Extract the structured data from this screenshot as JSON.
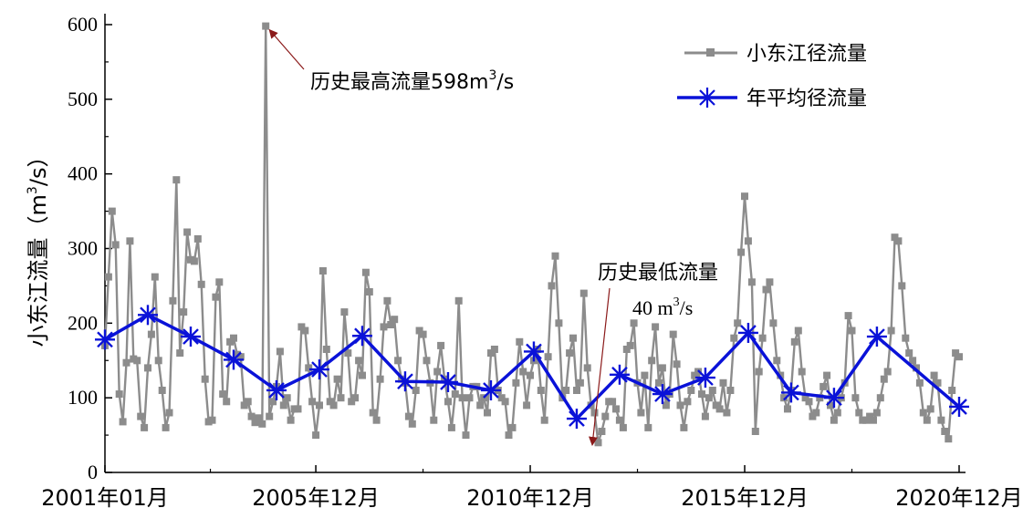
{
  "chart_data": {
    "type": "line",
    "ylabel": "小东江流量（m³/s）",
    "ylabel_text": "小东江流量（m",
    "ylabel_sup": "3",
    "ylabel_tail": "/s）",
    "ylim": [
      0,
      600
    ],
    "yticks": [
      "0",
      "100",
      "200",
      "300",
      "400",
      "500",
      "600"
    ],
    "xlim": [
      "2001-01",
      "2021-01"
    ],
    "xticks": [
      {
        "date": "2001-01",
        "label": "2001年01月"
      },
      {
        "date": "2005-12",
        "label": "2005年12月"
      },
      {
        "date": "2010-12",
        "label": "2010年12月"
      },
      {
        "date": "2015-12",
        "label": "2015年12月"
      },
      {
        "date": "2020-12",
        "label": "2020年12月"
      }
    ],
    "grid": false,
    "legend_position": "top-right",
    "series": [
      {
        "name": "小东江径流量",
        "color": "#8c8c8c",
        "marker": "square",
        "start": "2001-01",
        "frequency": "monthly",
        "values": [
          170,
          262,
          350,
          305,
          105,
          68,
          147,
          310,
          152,
          150,
          75,
          60,
          140,
          185,
          262,
          150,
          110,
          60,
          80,
          230,
          392,
          160,
          215,
          322,
          285,
          283,
          313,
          252,
          125,
          68,
          70,
          235,
          255,
          105,
          95,
          175,
          180,
          158,
          155,
          90,
          95,
          75,
          67,
          73,
          65,
          598,
          75,
          95,
          115,
          162,
          90,
          100,
          70,
          85,
          85,
          195,
          190,
          140,
          95,
          50,
          90,
          270,
          165,
          95,
          90,
          125,
          100,
          215,
          160,
          95,
          100,
          150,
          130,
          268,
          242,
          80,
          70,
          125,
          195,
          230,
          198,
          205,
          150,
          125,
          120,
          75,
          65,
          110,
          190,
          185,
          150,
          120,
          70,
          135,
          170,
          125,
          95,
          60,
          105,
          230,
          100,
          50,
          100,
          115,
          115,
          90,
          100,
          80,
          160,
          165,
          110,
          100,
          95,
          50,
          60,
          120,
          175,
          135,
          90,
          130,
          150,
          165,
          110,
          70,
          155,
          250,
          290,
          200,
          100,
          110,
          160,
          180,
          110,
          120,
          240,
          140,
          90,
          80,
          40,
          55,
          75,
          95,
          95,
          85,
          70,
          60,
          165,
          170,
          200,
          120,
          80,
          130,
          60,
          150,
          195,
          120,
          140,
          90,
          105,
          185,
          145,
          90,
          60,
          95,
          110,
          130,
          135,
          105,
          75,
          100,
          110,
          90,
          85,
          120,
          80,
          110,
          180,
          200,
          295,
          370,
          310,
          255,
          55,
          135,
          180,
          245,
          255,
          200,
          150,
          130,
          100,
          85,
          110,
          175,
          190,
          135,
          100,
          95,
          75,
          80,
          100,
          115,
          130,
          90,
          70,
          80,
          100,
          120,
          210,
          190,
          100,
          80,
          70,
          70,
          75,
          70,
          80,
          100,
          125,
          135,
          190,
          315,
          310,
          250,
          180,
          160,
          150,
          140,
          120,
          80,
          70,
          85,
          130,
          120,
          70,
          55,
          45,
          110,
          160,
          155
        ]
      },
      {
        "name": "年平均径流量",
        "color": "#0a12d8",
        "marker": "asterisk",
        "points": [
          [
            "2001-01",
            178
          ],
          [
            "2002-01",
            211
          ],
          [
            "2003-01",
            182
          ],
          [
            "2004-01",
            151
          ],
          [
            "2005-01",
            110
          ],
          [
            "2006-01",
            138
          ],
          [
            "2007-01",
            183
          ],
          [
            "2008-01",
            122
          ],
          [
            "2009-01",
            121
          ],
          [
            "2010-01",
            110
          ],
          [
            "2011-01",
            162
          ],
          [
            "2012-01",
            72
          ],
          [
            "2013-01",
            131
          ],
          [
            "2014-01",
            105
          ],
          [
            "2015-01",
            127
          ],
          [
            "2016-01",
            187
          ],
          [
            "2017-01",
            107
          ],
          [
            "2018-01",
            100
          ],
          [
            "2019-01",
            182
          ],
          [
            "2020-12",
            88
          ]
        ]
      }
    ],
    "annotations": [
      {
        "text": "历史最高流量598m",
        "sup": "3",
        "tail": "/s",
        "point": [
          "2004-10",
          598
        ]
      },
      {
        "text": "历史最低流量",
        "line2": "40 m",
        "sup": "3",
        "tail": "/s",
        "point": [
          "2012-07",
          40
        ]
      }
    ]
  }
}
